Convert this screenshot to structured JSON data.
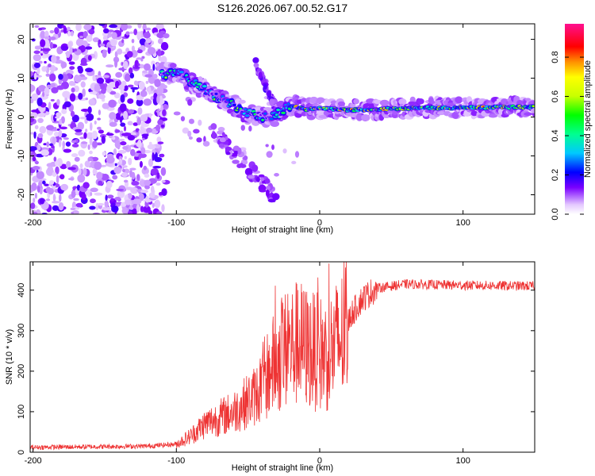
{
  "title": "S126.2026.067.00.52.G17",
  "chart_data": [
    {
      "type": "heatmap",
      "title": "S126.2026.067.00.52.G17",
      "xlabel": "Height of straight line (km)",
      "ylabel": "Frequency (Hz)",
      "xlim": [
        -202,
        150
      ],
      "ylim": [
        -25,
        24
      ],
      "xticks": [
        -200,
        -100,
        0,
        100
      ],
      "yticks": [
        -20,
        -10,
        0,
        10,
        20
      ],
      "colorbar": {
        "label": "Normalized spectral amplitude",
        "range": [
          0,
          0.97
        ],
        "ticks": [
          0.0,
          0.2,
          0.4,
          0.6,
          0.8
        ],
        "tick_labels": [
          "0.0",
          "0.2",
          "0.4",
          "0.6",
          "0.8"
        ]
      },
      "ridge": [
        {
          "x": -110,
          "y": 11
        },
        {
          "x": -100,
          "y": 11.5
        },
        {
          "x": -90,
          "y": 9
        },
        {
          "x": -80,
          "y": 7
        },
        {
          "x": -70,
          "y": 5
        },
        {
          "x": -60,
          "y": 3
        },
        {
          "x": -50,
          "y": 1
        },
        {
          "x": -40,
          "y": 0
        },
        {
          "x": -30,
          "y": 0.5
        },
        {
          "x": -20,
          "y": 3
        },
        {
          "x": -10,
          "y": 2
        },
        {
          "x": 0,
          "y": 2.2
        },
        {
          "x": 20,
          "y": 1.8
        },
        {
          "x": 40,
          "y": 2
        },
        {
          "x": 60,
          "y": 2.2
        },
        {
          "x": 80,
          "y": 2.4
        },
        {
          "x": 100,
          "y": 2.4
        },
        {
          "x": 120,
          "y": 2.5
        },
        {
          "x": 150,
          "y": 2.6
        }
      ]
    },
    {
      "type": "line",
      "xlabel": "Height of straight line (km)",
      "ylabel": "SNR (10 * v/v)",
      "xlim": [
        -202,
        150
      ],
      "ylim": [
        0,
        470
      ],
      "xticks": [
        -200,
        -100,
        0,
        100
      ],
      "yticks": [
        0,
        100,
        200,
        300,
        400
      ],
      "series": [
        {
          "name": "SNR",
          "color": "#ee3333",
          "trend": [
            {
              "x": -202,
              "y": 12
            },
            {
              "x": -120,
              "y": 15
            },
            {
              "x": -100,
              "y": 20
            },
            {
              "x": -90,
              "y": 40
            },
            {
              "x": -80,
              "y": 70
            },
            {
              "x": -60,
              "y": 100
            },
            {
              "x": -45,
              "y": 140
            },
            {
              "x": -35,
              "y": 200
            },
            {
              "x": -25,
              "y": 250
            },
            {
              "x": -15,
              "y": 270
            },
            {
              "x": -5,
              "y": 250
            },
            {
              "x": 5,
              "y": 240
            },
            {
              "x": 15,
              "y": 280
            },
            {
              "x": 22,
              "y": 340
            },
            {
              "x": 30,
              "y": 380
            },
            {
              "x": 40,
              "y": 405
            },
            {
              "x": 60,
              "y": 415
            },
            {
              "x": 100,
              "y": 412
            },
            {
              "x": 150,
              "y": 410
            }
          ]
        }
      ]
    }
  ]
}
